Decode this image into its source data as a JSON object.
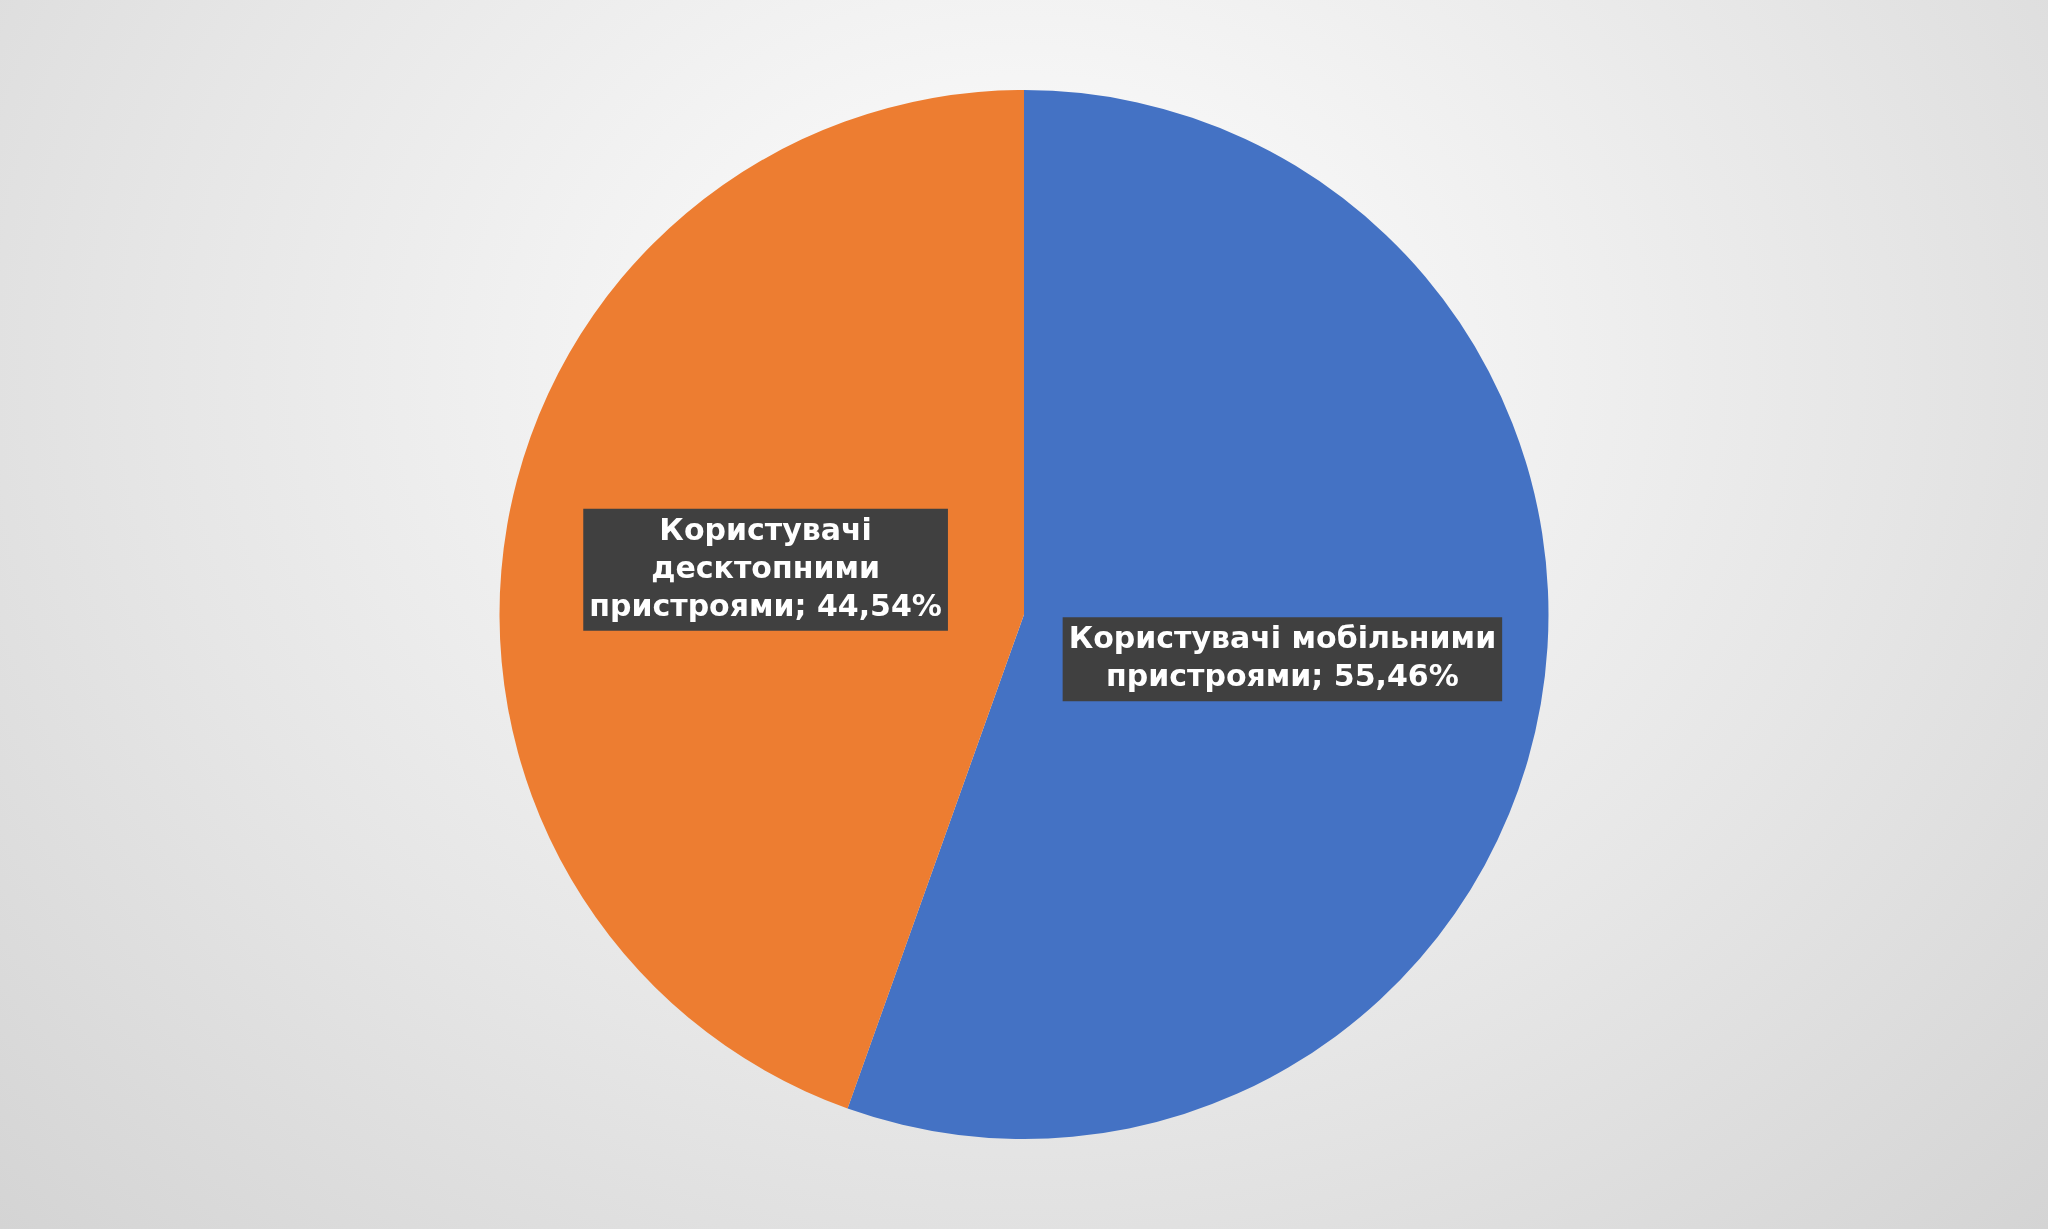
{
  "chart_data": {
    "type": "pie",
    "categories": [
      "Користувачі мобільними пристроями",
      "Користувачі десктопними пристроями"
    ],
    "values": [
      55.46,
      44.54
    ],
    "colors": [
      "#4472c4",
      "#ed7d31"
    ],
    "value_labels": [
      "55,46%",
      "44,54%"
    ],
    "legend": false
  }
}
